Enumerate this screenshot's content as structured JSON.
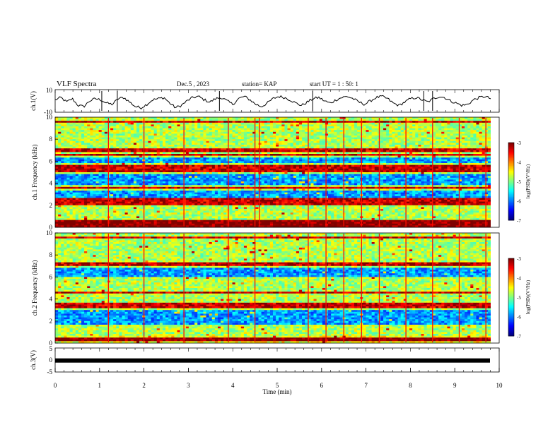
{
  "header": {
    "title": "VLF Spectra",
    "date": "Dec.5  , 2023",
    "station": "station= KAP",
    "start": "start  UT =  1 : 50: 1"
  },
  "chart_data": [
    {
      "type": "line",
      "ylabel": "ch.1(V)",
      "ylim": [
        -10,
        10
      ],
      "yticks": [
        "10",
        "-10"
      ],
      "x_range_min": [
        0,
        10
      ],
      "description_series": "ch.1 waveform",
      "values": [
        1,
        3,
        -1,
        2,
        -4,
        -5,
        0,
        2,
        1,
        -2,
        -3,
        2,
        3,
        -1,
        -5,
        -6,
        -3,
        1,
        2,
        3,
        -2,
        -6,
        -4,
        0,
        3,
        4,
        1,
        -1,
        2,
        3,
        0,
        -3,
        2,
        4,
        1,
        -3,
        -5,
        -2,
        2,
        4,
        3,
        1,
        -2,
        -4,
        -1,
        2,
        3,
        0,
        -2,
        1,
        3,
        4,
        2,
        -1,
        -3,
        0,
        3,
        4,
        2,
        -2,
        -4,
        -1,
        2,
        3,
        1,
        -1,
        2,
        4,
        3,
        0,
        -2,
        -4,
        -3,
        1,
        3,
        4,
        2
      ]
    },
    {
      "type": "heatmap",
      "ylabel": "ch.1 Frequency (kHz)",
      "ylim": [
        0,
        10
      ],
      "yticks": [
        "0",
        "2",
        "4",
        "6",
        "8",
        "10"
      ],
      "x_range_min": [
        0,
        10
      ],
      "colorbar": {
        "label": "log(PSD)(V²/Hz)",
        "range": [
          -7,
          -3
        ],
        "ticks": [
          "-3",
          "-4",
          "-5",
          "-6",
          "-7"
        ]
      },
      "strong_bands_khz": [
        0.2,
        0.5,
        2.2,
        2.5,
        3.6,
        5.2,
        5.5,
        6.6,
        7.0,
        9.6
      ],
      "quiet_bands_khz": [
        [
          2.7,
          3.4
        ],
        [
          3.9,
          4.9
        ],
        [
          5.8,
          6.4
        ]
      ],
      "spike_times_min": [
        1.2,
        2.0,
        2.9,
        3.9,
        4.5,
        4.6,
        5.7,
        6.1,
        6.5,
        6.9,
        7.3,
        7.9,
        8.5,
        9.1,
        9.7
      ]
    },
    {
      "type": "heatmap",
      "ylabel": "ch.2 Frequency (kHz)",
      "ylim": [
        0,
        10
      ],
      "yticks": [
        "0",
        "2",
        "4",
        "6",
        "8",
        "10"
      ],
      "x_range_min": [
        0,
        10
      ],
      "colorbar": {
        "label": "log(PSD)(V²/Hz)",
        "range": [
          -7,
          -3
        ],
        "ticks": [
          "-3",
          "-4",
          "-5",
          "-6",
          "-7"
        ]
      },
      "strong_bands_khz": [
        0.3,
        3.3,
        3.6,
        4.6,
        7.2,
        9.6
      ],
      "quiet_bands_khz": [
        [
          1.7,
          3.0
        ],
        [
          6.0,
          6.8
        ]
      ],
      "spike_times_min": [
        1.2,
        2.0,
        2.9,
        3.9,
        4.5,
        5.7,
        6.1,
        6.5,
        6.9,
        7.3,
        7.9,
        8.5,
        9.1,
        9.7
      ]
    },
    {
      "type": "line",
      "ylabel": "ch.3(V)",
      "ylim": [
        -5,
        5
      ],
      "yticks": [
        "5",
        "0",
        "-5"
      ],
      "x_range_min": [
        0,
        10
      ],
      "values_const": -0.2
    }
  ],
  "xaxis": {
    "label": "Time  (min)",
    "ticks": [
      "0",
      "1",
      "2",
      "3",
      "4",
      "5",
      "6",
      "7",
      "8",
      "9",
      "10"
    ]
  }
}
